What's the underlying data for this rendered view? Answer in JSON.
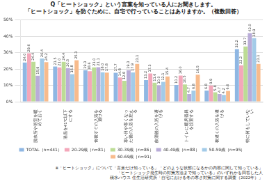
{
  "chart_data": {
    "type": "bar",
    "title": [
      "Q「ヒートショック」という言葉を知っている人にお聞きします。",
      "「ヒートショック」を防ぐために、自宅で行っていることはありますか。（複数回答）"
    ],
    "notes": [
      "※「ヒートショック」について「言葉だけ知っている」「どのような状態になるかの内容に関して知っている」",
      "「ヒートショック発生時の対策方法まで知っている」のいずれかを回答した人",
      "積水ハウス 住生活研究所「自宅における冬の寒さ対策に関する調査（2022年）」"
    ],
    "categories": [
      "脱衣所や浴室を暖めておく",
      "湯温を41℃以下にする",
      "食後すぐの入浴を避ける",
      "寒い日や寒くなった後の入浴を控える",
      "飲酒後の入浴を避ける",
      "トイレに暖房器具を設置する",
      "夜遅くの入浴を避ける",
      "特に何もしていない"
    ],
    "series": [
      {
        "name": "TOTAL（n=441）",
        "color": "#8fb7e3",
        "values": [
          24.0,
          21.5,
          19.3,
          17.7,
          13.2,
          10.2,
          6.8,
          32.2
        ],
        "value_labels": [
          "24.0",
          "21.5",
          "19.3",
          "17.7",
          "13.2",
          "10.2",
          "6.8",
          "32.2"
        ]
      },
      {
        "name": "20-29歳（n=81）",
        "color": "#f4a7ba",
        "values": [
          29.6,
          21.0,
          18.6,
          14.8,
          17.3,
          16.0,
          9.9,
          22.2
        ],
        "value_labels": [
          "29.6",
          "21.0",
          "18.6",
          "14.8",
          "17.3",
          "16.0",
          "9.9",
          "22.2"
        ]
      },
      {
        "name": "30-39歳（n=86）",
        "color": "#bcdc95",
        "values": [
          24.4,
          24.4,
          21.0,
          12.8,
          11.6,
          10.5,
          5.8,
          33.7
        ],
        "value_labels": [
          "24.4",
          "24.4",
          "21.0",
          "12.8",
          "11.6",
          "10.5",
          "5.8",
          "33.7"
        ]
      },
      {
        "name": "40-49歳（n=88）",
        "color": "#b9acd8",
        "values": [
          15.9,
          20.5,
          21.1,
          19.3,
          10.0,
          4.7,
          4.7,
          42.0
        ],
        "value_labels": [
          "15.9",
          "20.5",
          "21.1",
          "19.3",
          "10.0",
          "4.7",
          "4.7",
          "42.0"
        ]
      },
      {
        "name": "50-59歳（n=95）",
        "color": "#a3cbe8",
        "values": [
          26.4,
          16.8,
          18.0,
          17.9,
          12.1,
          6.8,
          4.2,
          38.9
        ],
        "value_labels": [
          "26.4",
          "16.8",
          "18.0",
          "17.9",
          "12.1",
          "6.8",
          "4.2",
          "38.9"
        ]
      },
      {
        "name": "60-69歳（n=91）",
        "color": "#f8bb8c",
        "values": [
          24.2,
          25.3,
          17.8,
          23.1,
          15.4,
          16.5,
          6.6,
          23.1
        ],
        "value_labels": [
          "24.2",
          "25.3",
          "17.8",
          "23.1",
          "15.4",
          "16.5",
          "6.6",
          "23.1"
        ]
      }
    ],
    "ylim": [
      0,
      50
    ],
    "yticks": [
      {
        "value": 0,
        "label": "0%"
      },
      {
        "value": 10,
        "label": "10%"
      },
      {
        "value": 20,
        "label": "20%"
      },
      {
        "value": 30,
        "label": "30%"
      },
      {
        "value": 40,
        "label": "40%"
      },
      {
        "value": 50,
        "label": "50%"
      }
    ],
    "grid": true,
    "legend": "bottom",
    "data_labels": true
  }
}
